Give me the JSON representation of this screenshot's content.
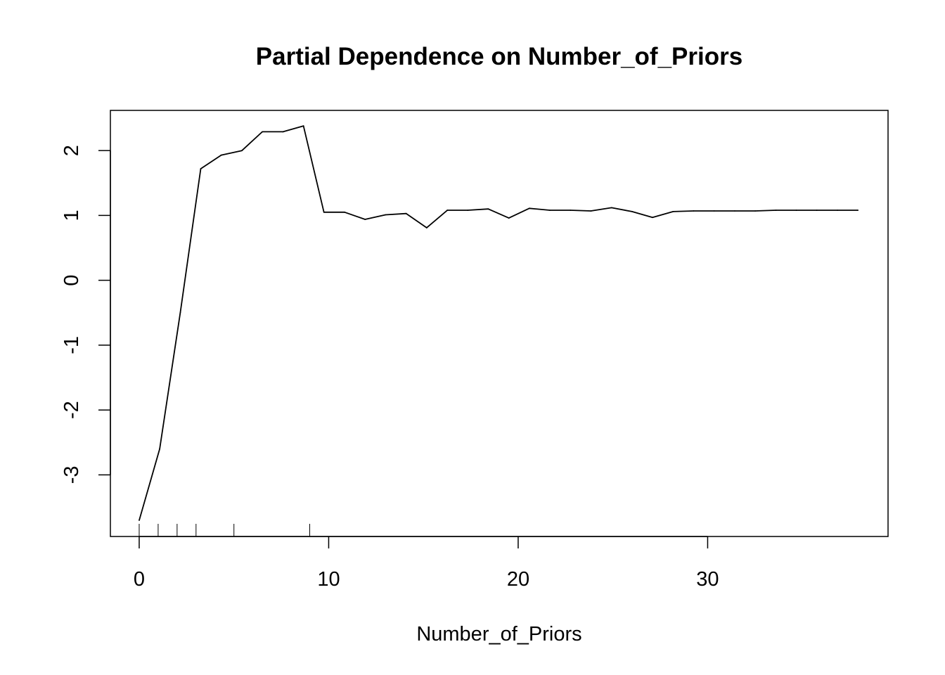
{
  "chart_data": {
    "type": "line",
    "title": "Partial Dependence on Number_of_Priors",
    "xlabel": "Number_of_Priors",
    "ylabel": "",
    "xlim": [
      -1.52,
      39.52
    ],
    "ylim": [
      -3.95,
      2.62
    ],
    "x_ticks": [
      0,
      10,
      20,
      30
    ],
    "y_ticks": [
      -3,
      -2,
      -1,
      0,
      1,
      2
    ],
    "grid": false,
    "legend": "none",
    "line_color": "#000000",
    "series": [
      {
        "x": [
          0,
          1.08,
          2.17,
          3.25,
          4.33,
          5.42,
          6.5,
          7.59,
          8.67,
          9.75,
          10.84,
          11.92,
          13.0,
          14.09,
          15.17,
          16.26,
          17.34,
          18.42,
          19.51,
          20.59,
          21.67,
          22.76,
          23.84,
          24.93,
          26.01,
          27.09,
          28.18,
          29.26,
          30.34,
          31.43,
          32.51,
          33.6,
          34.68,
          35.76,
          36.85,
          37.93
        ],
        "values": [
          -3.7,
          -2.6,
          -0.5,
          1.72,
          1.93,
          2.0,
          2.29,
          2.29,
          2.38,
          1.05,
          1.05,
          0.94,
          1.01,
          1.03,
          0.81,
          1.08,
          1.08,
          1.1,
          0.96,
          1.11,
          1.08,
          1.08,
          1.07,
          1.12,
          1.06,
          0.97,
          1.06,
          1.07,
          1.07,
          1.07,
          1.07,
          1.08,
          1.08,
          1.08,
          1.08,
          1.08
        ]
      }
    ],
    "rug": [
      0,
      1,
      2,
      3,
      5,
      9
    ]
  }
}
